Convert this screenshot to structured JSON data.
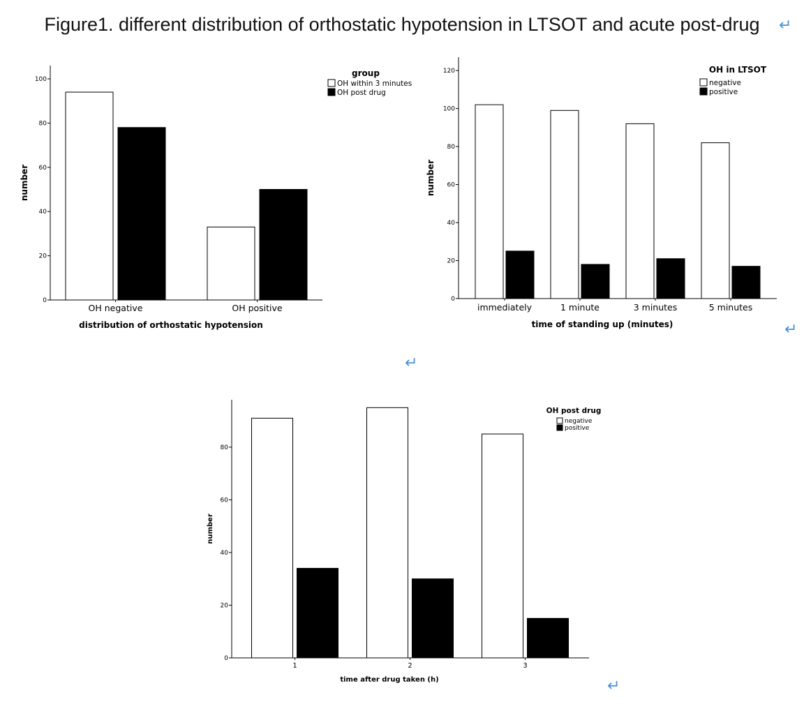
{
  "figure": {
    "title": "Figure1. different distribution of orthostatic hypotension in LTSOT and acute post-drug",
    "return_glyph": "↵"
  },
  "chart_data": [
    {
      "type": "bar",
      "xlabel": "distribution of orthostatic hypotension",
      "ylabel": "number",
      "ylim": [
        0,
        106
      ],
      "yticks": [
        0,
        20,
        40,
        60,
        80,
        100
      ],
      "categories": [
        "OH negative",
        "OH positive"
      ],
      "legend": {
        "title": "group",
        "placement": "top-right"
      },
      "series": [
        {
          "name": "OH within 3 minutes",
          "color": "#ffffff",
          "values": [
            94,
            33
          ]
        },
        {
          "name": "OH post drug",
          "color": "#000000",
          "values": [
            78,
            50
          ]
        }
      ],
      "grid": false
    },
    {
      "type": "bar",
      "xlabel": "time of standing up (minutes)",
      "ylabel": "number",
      "ylim": [
        0,
        127
      ],
      "yticks": [
        0,
        20,
        40,
        60,
        80,
        100,
        120
      ],
      "categories": [
        "immediately",
        "1 minute",
        "3 minutes",
        "5 minutes"
      ],
      "legend": {
        "title": "OH in LTSOT",
        "placement": "top-right"
      },
      "series": [
        {
          "name": "negative",
          "color": "#ffffff",
          "values": [
            102,
            99,
            92,
            82
          ]
        },
        {
          "name": "positive",
          "color": "#000000",
          "values": [
            25,
            18,
            21,
            17
          ]
        }
      ],
      "grid": false
    },
    {
      "type": "bar",
      "xlabel": "time after drug taken (h)",
      "ylabel": "number",
      "ylim": [
        0,
        98
      ],
      "yticks": [
        0,
        20,
        40,
        60,
        80
      ],
      "categories": [
        "1",
        "2",
        "3"
      ],
      "legend": {
        "title": "OH post drug",
        "placement": "top-right"
      },
      "series": [
        {
          "name": "negative",
          "color": "#ffffff",
          "values": [
            91,
            95,
            85
          ]
        },
        {
          "name": "positive",
          "color": "#000000",
          "values": [
            34,
            30,
            15
          ]
        }
      ],
      "grid": false
    }
  ]
}
